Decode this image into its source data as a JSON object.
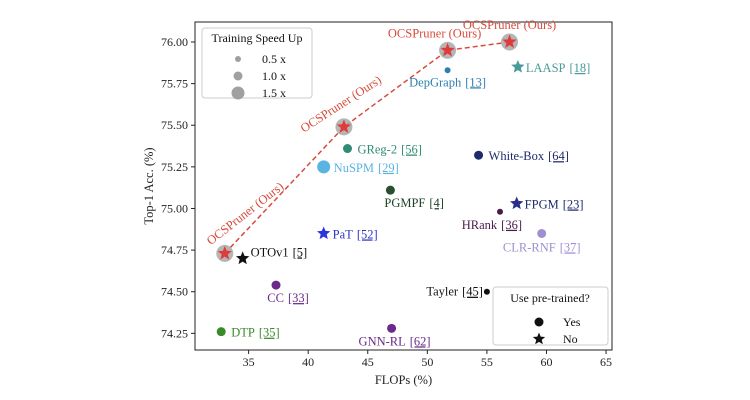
{
  "chart_data": {
    "type": "scatter",
    "title": "",
    "xlabel": "FLOPs (%)",
    "ylabel": "Top-1 Acc. (%)",
    "xlim": [
      30.5,
      65.5
    ],
    "ylim": [
      74.15,
      76.12
    ],
    "xticks": [
      35,
      40,
      45,
      50,
      55,
      60,
      65
    ],
    "yticks": [
      74.25,
      74.5,
      74.75,
      75.0,
      75.25,
      75.5,
      75.75,
      76.0
    ],
    "xtick_labels": [
      "35",
      "40",
      "45",
      "50",
      "55",
      "60",
      "65"
    ],
    "ytick_labels": [
      "74.25",
      "74.50",
      "74.75",
      "75.00",
      "75.25",
      "75.50",
      "75.75",
      "76.00"
    ],
    "grid": false,
    "points": [
      {
        "id": "ocs1",
        "name": "OCSPruner (Ours)",
        "ref": "",
        "x": 33.0,
        "y": 74.73,
        "marker": "star",
        "size": 1.5,
        "color": "#e03b3b",
        "label_color": "#d84a3a",
        "label_rotate": -38,
        "label_anchor": "start",
        "label_dx": -14,
        "label_dy": -8
      },
      {
        "id": "ocs2",
        "name": "OCSPruner (Ours)",
        "ref": "",
        "x": 43.0,
        "y": 75.49,
        "marker": "star",
        "size": 1.5,
        "color": "#e03b3b",
        "label_color": "#d84a3a",
        "label_rotate": -33,
        "label_anchor": "start",
        "label_dx": -40,
        "label_dy": 6
      },
      {
        "id": "ocs3",
        "name": "OCSPruner (Ours)",
        "ref": "",
        "x": 51.7,
        "y": 75.95,
        "marker": "star",
        "size": 1.5,
        "color": "#e03b3b",
        "label_color": "#d84a3a",
        "label_rotate": 0,
        "label_anchor": "middle",
        "label_dx": -13,
        "label_dy": -13
      },
      {
        "id": "ocs4",
        "name": "OCSPruner (Ours)",
        "ref": "",
        "x": 56.9,
        "y": 76.0,
        "marker": "star",
        "size": 1.5,
        "color": "#e03b3b",
        "label_color": "#d84a3a",
        "label_rotate": 0,
        "label_anchor": "middle",
        "label_dx": 0,
        "label_dy": -13
      },
      {
        "id": "depgraph",
        "name": "DepGraph",
        "ref": "[13]",
        "x": 51.7,
        "y": 75.83,
        "marker": "circle",
        "size": 0.5,
        "color": "#2e7fb0",
        "label_color": "#2e7fb0",
        "label_rotate": 0,
        "label_anchor": "middle",
        "label_dx": 0,
        "label_dy": 16
      },
      {
        "id": "laasp",
        "name": "LAASP",
        "ref": "[18]",
        "x": 57.6,
        "y": 75.85,
        "marker": "star",
        "size": 1.0,
        "color": "#4a9a9a",
        "label_color": "#4a9a9a",
        "label_rotate": 0,
        "label_anchor": "start",
        "label_dx": 8,
        "label_dy": 5
      },
      {
        "id": "greg2",
        "name": "GReg-2",
        "ref": "[56]",
        "x": 43.3,
        "y": 75.36,
        "marker": "circle",
        "size": 1.0,
        "color": "#2f8c77",
        "label_color": "#2f8c77",
        "label_rotate": 0,
        "label_anchor": "start",
        "label_dx": 10,
        "label_dy": 5
      },
      {
        "id": "nuspm",
        "name": "NuSPM",
        "ref": "[29]",
        "x": 41.3,
        "y": 75.25,
        "marker": "circle",
        "size": 1.5,
        "color": "#5ab4e2",
        "label_color": "#5ab4e2",
        "label_rotate": 0,
        "label_anchor": "start",
        "label_dx": 10,
        "label_dy": 5
      },
      {
        "id": "whitebox",
        "name": "White-Box",
        "ref": "[64]",
        "x": 54.3,
        "y": 75.32,
        "marker": "circle",
        "size": 1.0,
        "color": "#1f2a6b",
        "label_color": "#1f2a6b",
        "label_rotate": 0,
        "label_anchor": "start",
        "label_dx": 10,
        "label_dy": 5
      },
      {
        "id": "pgmpf",
        "name": "PGMPF",
        "ref": "[4]",
        "x": 46.9,
        "y": 75.11,
        "marker": "circle",
        "size": 1.0,
        "color": "#2a4f2f",
        "label_color": "#1f3f26",
        "label_rotate": 0,
        "label_anchor": "start",
        "label_dx": -6,
        "label_dy": 17
      },
      {
        "id": "hrank",
        "name": "HRank",
        "ref": "[36]",
        "x": 56.1,
        "y": 74.98,
        "marker": "circle",
        "size": 0.5,
        "color": "#4a1a4a",
        "label_color": "#4a1a4a",
        "label_rotate": 0,
        "label_anchor": "end",
        "label_dx": 22,
        "label_dy": 17
      },
      {
        "id": "fpgm",
        "name": "FPGM",
        "ref": "[23]",
        "x": 57.5,
        "y": 75.03,
        "marker": "star",
        "size": 1.0,
        "color": "#2a2f8a",
        "label_color": "#1f2a6b",
        "label_rotate": 0,
        "label_anchor": "start",
        "label_dx": 8,
        "label_dy": 5
      },
      {
        "id": "clrrnf",
        "name": "CLR-RNF",
        "ref": "[37]",
        "x": 59.6,
        "y": 74.85,
        "marker": "circle",
        "size": 1.0,
        "color": "#9f8fd0",
        "label_color": "#9f8fd0",
        "label_rotate": 0,
        "label_anchor": "middle",
        "label_dx": 0,
        "label_dy": 18
      },
      {
        "id": "pat",
        "name": "PaT",
        "ref": "[52]",
        "x": 41.3,
        "y": 74.85,
        "marker": "star",
        "size": 1.0,
        "color": "#2a35e0",
        "label_color": "#2a35c0",
        "label_rotate": 0,
        "label_anchor": "start",
        "label_dx": 9,
        "label_dy": 5
      },
      {
        "id": "otov1",
        "name": "OTOv1",
        "ref": "[5]",
        "x": 34.5,
        "y": 74.7,
        "marker": "star",
        "size": 1.0,
        "color": "#111111",
        "label_color": "#111111",
        "label_rotate": 0,
        "label_anchor": "start",
        "label_dx": 8,
        "label_dy": -2
      },
      {
        "id": "cc",
        "name": "CC",
        "ref": "[33]",
        "x": 37.3,
        "y": 74.54,
        "marker": "circle",
        "size": 1.0,
        "color": "#6a2a8a",
        "label_color": "#6a2a8a",
        "label_rotate": 0,
        "label_anchor": "middle",
        "label_dx": 12,
        "label_dy": 17
      },
      {
        "id": "tayler",
        "name": "Tayler",
        "ref": "[45]",
        "x": 55.0,
        "y": 74.5,
        "marker": "circle",
        "size": 0.5,
        "color": "#111111",
        "label_color": "#111111",
        "label_rotate": 0,
        "label_anchor": "end",
        "label_dx": -4,
        "label_dy": 4
      },
      {
        "id": "dtp",
        "name": "DTP",
        "ref": "[35]",
        "x": 32.7,
        "y": 74.26,
        "marker": "circle",
        "size": 1.0,
        "color": "#3a8a2a",
        "label_color": "#3a8a2a",
        "label_rotate": 0,
        "label_anchor": "start",
        "label_dx": 10,
        "label_dy": 5
      },
      {
        "id": "gnnrl",
        "name": "GNN-RL",
        "ref": "[62]",
        "x": 47.0,
        "y": 74.28,
        "marker": "circle",
        "size": 1.0,
        "color": "#6a2a8a",
        "label_color": "#6a2a8a",
        "label_rotate": 0,
        "label_anchor": "middle",
        "label_dx": 3,
        "label_dy": 17
      }
    ],
    "ours_line": {
      "point_ids": [
        "ocs1",
        "ocs2",
        "ocs3",
        "ocs4"
      ],
      "color": "#d84a3a",
      "style": "dashed"
    },
    "legend_speed": {
      "title": "Training Speed Up",
      "placement": "top-left",
      "items": [
        {
          "label": "0.5 x",
          "size": 0.5
        },
        {
          "label": "1.0 x",
          "size": 1.0
        },
        {
          "label": "1.5 x",
          "size": 1.5
        }
      ]
    },
    "legend_pretrained": {
      "title": "Use pre-trained?",
      "placement": "bottom-right",
      "items": [
        {
          "label": "Yes",
          "marker": "circle"
        },
        {
          "label": "No",
          "marker": "star"
        }
      ]
    }
  }
}
